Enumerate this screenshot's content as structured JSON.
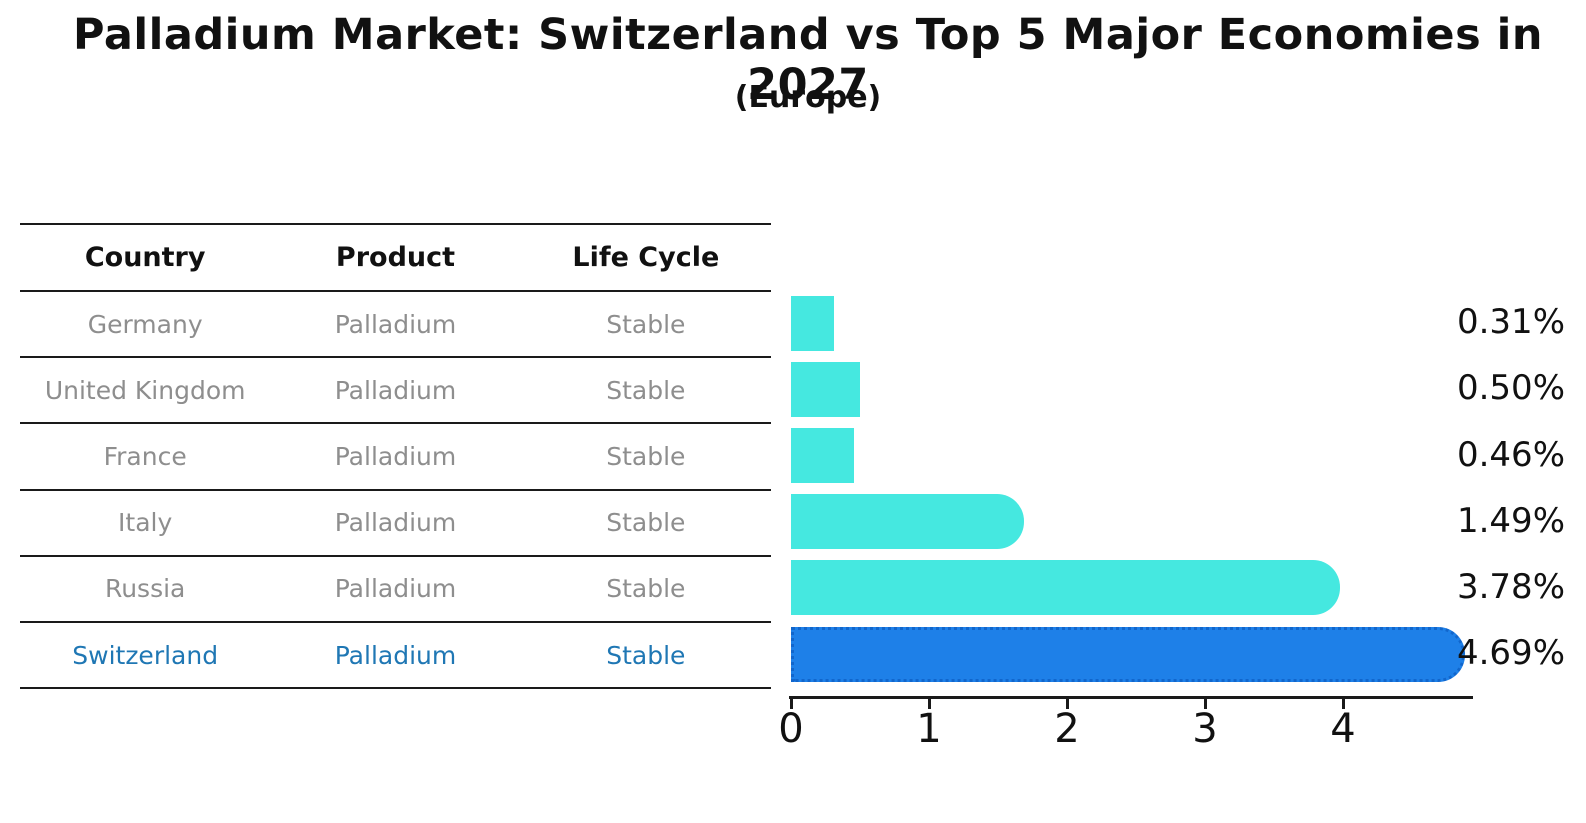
{
  "header": {
    "title": "Palladium Market: Switzerland vs Top 5 Major Economies in 2027",
    "subtitle": "(Europe)"
  },
  "table": {
    "headers": [
      "Country",
      "Product",
      "Life Cycle"
    ],
    "rows": [
      {
        "country": "Germany",
        "product": "Palladium",
        "life_cycle": "Stable",
        "highlighted": false
      },
      {
        "country": "United Kingdom",
        "product": "Palladium",
        "life_cycle": "Stable",
        "highlighted": false
      },
      {
        "country": "France",
        "product": "Palladium",
        "life_cycle": "Stable",
        "highlighted": false
      },
      {
        "country": "Italy",
        "product": "Palladium",
        "life_cycle": "Stable",
        "highlighted": false
      },
      {
        "country": "Russia",
        "product": "Palladium",
        "life_cycle": "Stable",
        "highlighted": false
      },
      {
        "country": "Switzerland",
        "product": "Palladium",
        "life_cycle": "Stable",
        "highlighted": true
      }
    ]
  },
  "chart_data": {
    "type": "bar",
    "orientation": "horizontal",
    "title": "Palladium Market: Switzerland vs Top 5 Major Economies in 2027",
    "subtitle": "(Europe)",
    "categories": [
      "Germany",
      "United Kingdom",
      "France",
      "Italy",
      "Russia",
      "Switzerland"
    ],
    "values": [
      0.31,
      0.5,
      0.46,
      1.49,
      3.78,
      4.69
    ],
    "value_labels": [
      "0.31%",
      "0.50%",
      "0.46%",
      "1.49%",
      "3.78%",
      "4.69%"
    ],
    "xlabel": "",
    "ylabel": "",
    "xlim": [
      0,
      4.92
    ],
    "xticks": [
      "0",
      "1",
      "2",
      "3",
      "4"
    ],
    "grid": false,
    "legend_position": "none",
    "highlight_index": 5
  },
  "colors": {
    "bar": "#45e8e0",
    "highlight_bar": "#1e80e8",
    "highlight_border": "#1166cc",
    "highlight_text": "#1f77b4",
    "row_text": "#8e8e8e",
    "axis": "#1a1a1a",
    "text": "#111111"
  }
}
